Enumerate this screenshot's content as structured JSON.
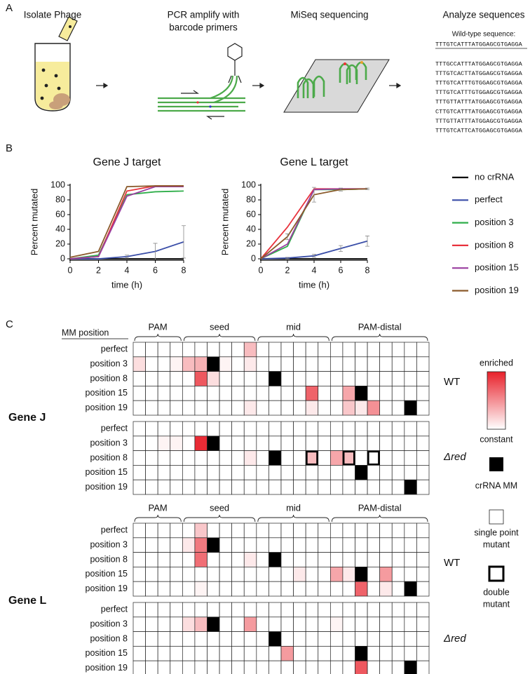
{
  "panel_a": {
    "label": "A",
    "steps": [
      "Isolate Phage",
      [
        "PCR amplify with",
        "barcode primers"
      ],
      "MiSeq sequencing",
      "Analyze sequences"
    ],
    "wt_label": "Wild-type sequence:",
    "wt_sequence": "TTTGTCATTTATGGAGCGTGAGGA",
    "reads": [
      "TTTGCCATTTATGGAGCGTGAGGA",
      "TTTGTCACTTATGGAGCGTGAGGA",
      "TTTGTCATTTGTGGAGCGTGAGGA",
      "TTTGTCATTTGTGGAGCGTGAGGA",
      "TTTGTTATTTATGGAGCGTGAGGA",
      "CTTGTCATTTATGGAGCGTGAGGA",
      "TTTGTTATTTATGGAGCGTGAGGA",
      "TTTGTCATTCATGGAGCGTGAGGA"
    ]
  },
  "panel_b": {
    "label": "B",
    "legend": [
      "no crRNA",
      "perfect",
      "position 3",
      "position 8",
      "position 15",
      "position 19"
    ]
  },
  "chart_data": [
    {
      "type": "line",
      "title": "Gene J target",
      "xlabel": "time (h)",
      "ylabel": "Percent mutated",
      "x": [
        0,
        2,
        4,
        6,
        8
      ],
      "xlim": [
        0,
        8
      ],
      "ylim": [
        0,
        100
      ],
      "xticks": [
        0,
        2,
        4,
        6,
        8
      ],
      "yticks": [
        0,
        20,
        40,
        60,
        80,
        100
      ],
      "series": [
        {
          "color": "#000000",
          "values": [
            0,
            0,
            0,
            0,
            0
          ]
        },
        {
          "color": "#3a4ea8",
          "values": [
            0,
            0,
            3,
            10,
            23
          ],
          "errors": [
            0,
            0,
            2,
            11,
            22
          ]
        },
        {
          "color": "#2fae4a",
          "values": [
            0,
            5,
            87,
            91,
            92
          ]
        },
        {
          "color": "#e8323c",
          "values": [
            0,
            3,
            92,
            99,
            99
          ]
        },
        {
          "color": "#9a3fa0",
          "values": [
            0,
            3,
            85,
            98,
            98
          ]
        },
        {
          "color": "#8b5a2b",
          "values": [
            2,
            10,
            98,
            99,
            99
          ]
        }
      ]
    },
    {
      "type": "line",
      "title": "Gene L target",
      "xlabel": "time (h)",
      "ylabel": "Percent mutated",
      "x": [
        0,
        2,
        4,
        6,
        8
      ],
      "xlim": [
        0,
        8
      ],
      "ylim": [
        0,
        100
      ],
      "xticks": [
        0,
        2,
        4,
        6,
        8
      ],
      "yticks": [
        0,
        20,
        40,
        60,
        80,
        100
      ],
      "series": [
        {
          "color": "#000000",
          "values": [
            0,
            0,
            0,
            0,
            0
          ]
        },
        {
          "color": "#3a4ea8",
          "values": [
            0,
            1,
            4,
            14,
            24
          ],
          "errors": [
            0,
            1,
            2,
            4,
            7
          ]
        },
        {
          "color": "#2fae4a",
          "values": [
            0,
            17,
            94,
            94,
            95
          ]
        },
        {
          "color": "#e8323c",
          "values": [
            0,
            43,
            95,
            95,
            95
          ]
        },
        {
          "color": "#9a3fa0",
          "values": [
            0,
            20,
            94,
            95,
            95
          ]
        },
        {
          "color": "#8b5a2b",
          "values": [
            0,
            30,
            87,
            94,
            95
          ],
          "errors": [
            0,
            4,
            10,
            2,
            1
          ]
        }
      ]
    }
  ],
  "panel_c": {
    "label": "C",
    "header": "MM position",
    "columns": 24,
    "legend": {
      "enriched": "enriched",
      "constant": "constant",
      "mm": "crRNA MM",
      "single": [
        "single point",
        "mutant"
      ],
      "double": [
        "double",
        "mutant"
      ]
    },
    "heatmaps": [
      {
        "gene": "Gene J",
        "regions": [
          "PAM",
          "seed",
          "mid",
          "PAM-distal"
        ],
        "groups": [
          {
            "label": "WT",
            "rows": [
              {
                "label": "perfect",
                "values": {
                  "9": 0.3
                },
                "mm": null,
                "double": []
              },
              {
                "label": "position 3",
                "values": {
                  "0": 0.15,
                  "3": 0.05,
                  "4": 0.3,
                  "5": 0.35,
                  "7": 0.05,
                  "9": 0.1
                },
                "mm": 6,
                "double": []
              },
              {
                "label": "position 8",
                "values": {
                  "5": 0.75,
                  "6": 0.15
                },
                "mm": 11,
                "double": []
              },
              {
                "label": "position 15",
                "values": {
                  "14": 0.7,
                  "17": 0.4
                },
                "mm": 18,
                "double": []
              },
              {
                "label": "position 19",
                "values": {
                  "9": 0.1,
                  "14": 0.1,
                  "17": 0.25,
                  "18": 0.1,
                  "19": 0.5
                },
                "mm": 22,
                "double": []
              }
            ]
          },
          {
            "label": "Δred",
            "rows": [
              {
                "label": "perfect",
                "values": {},
                "mm": null,
                "double": []
              },
              {
                "label": "position 3",
                "values": {
                  "2": 0.05,
                  "3": 0.05,
                  "5": 0.95
                },
                "mm": 6,
                "double": []
              },
              {
                "label": "position 8",
                "values": {
                  "9": 0.1,
                  "14": 0.3,
                  "16": 0.4,
                  "17": 0.3
                },
                "mm": 11,
                "double": [
                  14,
                  17,
                  19
                ]
              },
              {
                "label": "position 15",
                "values": {},
                "mm": 18,
                "double": []
              },
              {
                "label": "position 19",
                "values": {},
                "mm": 22,
                "double": []
              }
            ]
          }
        ]
      },
      {
        "gene": "Gene L",
        "regions": [
          "PAM",
          "seed",
          "mid",
          "PAM-distal"
        ],
        "groups": [
          {
            "label": "WT",
            "rows": [
              {
                "label": "perfect",
                "values": {
                  "5": 0.25
                },
                "mm": null,
                "double": []
              },
              {
                "label": "position 3",
                "values": {
                  "4": 0.1,
                  "5": 0.6
                },
                "mm": 6,
                "double": []
              },
              {
                "label": "position 8",
                "values": {
                  "5": 0.65,
                  "9": 0.1
                },
                "mm": 11,
                "double": []
              },
              {
                "label": "position 15",
                "values": {
                  "13": 0.1,
                  "16": 0.4,
                  "17": 0.1,
                  "20": 0.45
                },
                "mm": 18,
                "double": []
              },
              {
                "label": "position 19",
                "values": {
                  "5": 0.05,
                  "18": 0.7,
                  "20": 0.1
                },
                "mm": 22,
                "double": []
              }
            ]
          },
          {
            "label": "Δred",
            "rows": [
              {
                "label": "perfect",
                "values": {},
                "mm": null,
                "double": []
              },
              {
                "label": "position 3",
                "values": {
                  "4": 0.15,
                  "5": 0.3,
                  "9": 0.45,
                  "16": 0.05
                },
                "mm": 6,
                "double": []
              },
              {
                "label": "position 8",
                "values": {},
                "mm": 11,
                "double": []
              },
              {
                "label": "position 15",
                "values": {
                  "12": 0.45
                },
                "mm": 18,
                "double": []
              },
              {
                "label": "position 19",
                "values": {
                  "18": 0.75
                },
                "mm": 22,
                "double": []
              }
            ]
          }
        ]
      }
    ]
  }
}
